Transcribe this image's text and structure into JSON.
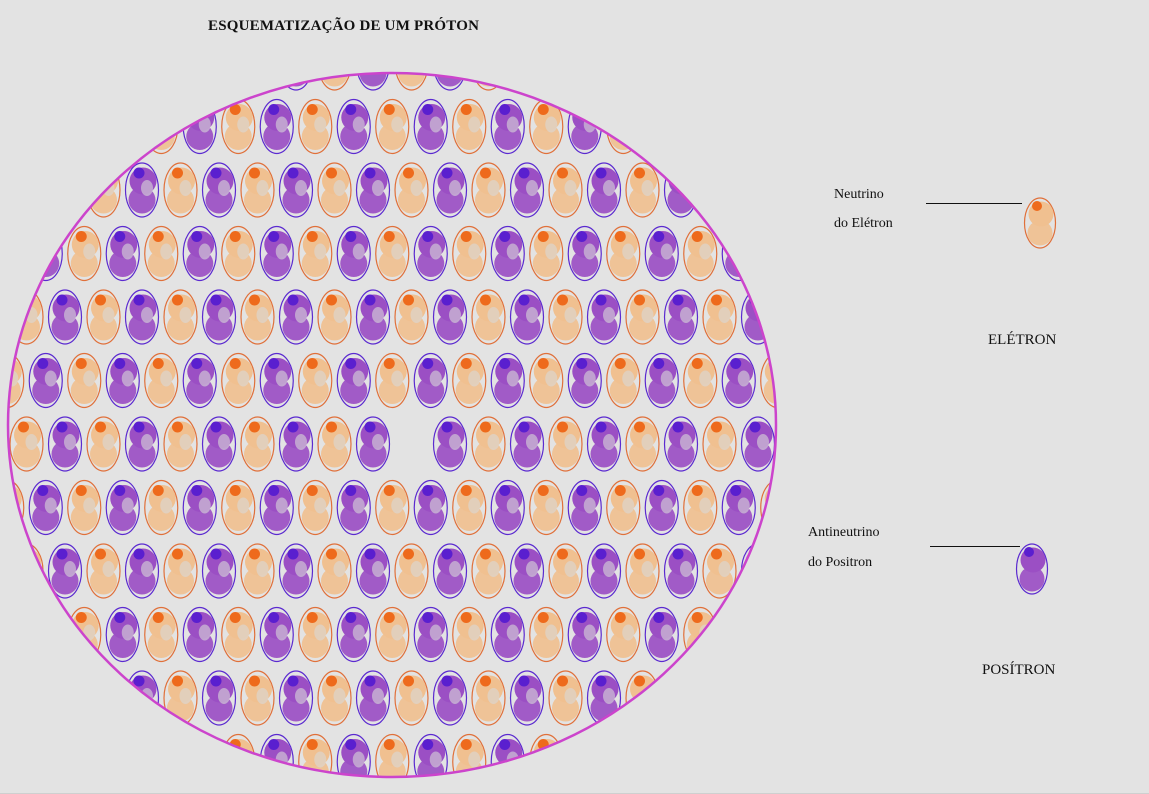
{
  "title": "ESQUEMATIZAÇÃO DE UM PRÓTON",
  "labels": {
    "neutrino_line1": "Neutrino",
    "neutrino_line2": "do Elétron",
    "eletron": "ELÉTRON",
    "antineutrino_line1": "Antineutrino",
    "antineutrino_line2": "do Positron",
    "positron": "POSÍTRON"
  },
  "colors": {
    "background": "#e3e3e3",
    "circle_outline": "#cc44cc",
    "positron_body": "#9b4fc4",
    "positron_cap": "#5a1fcf",
    "positron_outline": "#5b2ad0",
    "eletron_body": "#f0c090",
    "eletron_cap": "#ee6a1c",
    "eletron_outline": "#e0703a"
  }
}
